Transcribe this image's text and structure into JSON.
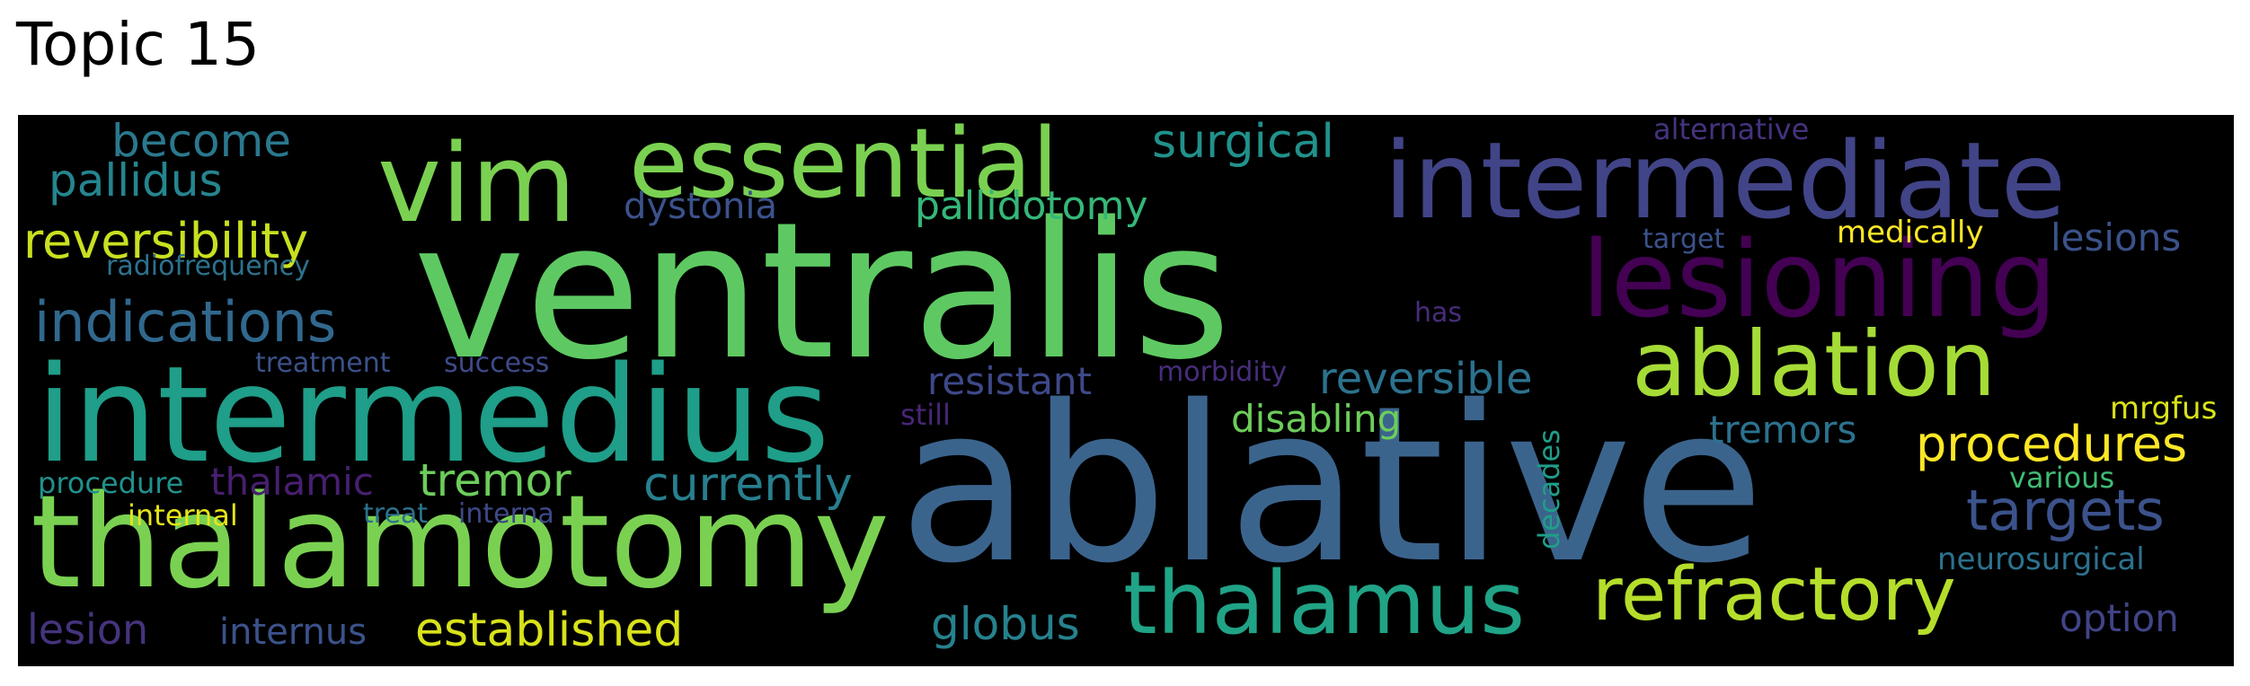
{
  "title": "Topic 15",
  "cloud": {
    "background": "#000000",
    "words": [
      {
        "text": "ventralis",
        "color": "#5ec962"
      },
      {
        "text": "ablative",
        "color": "#3b648d"
      },
      {
        "text": "intermedius",
        "color": "#1f9e89"
      },
      {
        "text": "thalamotomy",
        "color": "#7ad151"
      },
      {
        "text": "intermediate",
        "color": "#414487"
      },
      {
        "text": "lesioning",
        "color": "#440154"
      },
      {
        "text": "vim",
        "color": "#7ad151"
      },
      {
        "text": "essential",
        "color": "#7ad151"
      },
      {
        "text": "ablation",
        "color": "#a5db36"
      },
      {
        "text": "thalamus",
        "color": "#20a386"
      },
      {
        "text": "refractory",
        "color": "#b5de2b"
      },
      {
        "text": "indications",
        "color": "#31688e"
      },
      {
        "text": "reversibility",
        "color": "#c8e020"
      },
      {
        "text": "become",
        "color": "#2a788e"
      },
      {
        "text": "pallidus",
        "color": "#25858e"
      },
      {
        "text": "surgical",
        "color": "#21918c"
      },
      {
        "text": "dystonia",
        "color": "#3b528b"
      },
      {
        "text": "pallidotomy",
        "color": "#35b779"
      },
      {
        "text": "radiofrequency",
        "color": "#2c728e"
      },
      {
        "text": "treatment",
        "color": "#3b528b"
      },
      {
        "text": "success",
        "color": "#3e4a89"
      },
      {
        "text": "resistant",
        "color": "#3e4989"
      },
      {
        "text": "morbidity",
        "color": "#472d7b"
      },
      {
        "text": "reversible",
        "color": "#2c728e"
      },
      {
        "text": "disabling",
        "color": "#6ccd5a"
      },
      {
        "text": "still",
        "color": "#482677"
      },
      {
        "text": "has",
        "color": "#472c7a"
      },
      {
        "text": "tremor",
        "color": "#6ccd5a"
      },
      {
        "text": "currently",
        "color": "#277f8e"
      },
      {
        "text": "procedure",
        "color": "#21918c"
      },
      {
        "text": "thalamic",
        "color": "#481f70"
      },
      {
        "text": "internal",
        "color": "#e5e419"
      },
      {
        "text": "treat",
        "color": "#2c728e"
      },
      {
        "text": "interna",
        "color": "#3e4989"
      },
      {
        "text": "lesion",
        "color": "#46337e"
      },
      {
        "text": "internus",
        "color": "#3b528b"
      },
      {
        "text": "established",
        "color": "#d8e219"
      },
      {
        "text": "globus",
        "color": "#26828e"
      },
      {
        "text": "decades",
        "color": "#1f9e89"
      },
      {
        "text": "alternative",
        "color": "#46327e"
      },
      {
        "text": "target",
        "color": "#3b528b"
      },
      {
        "text": "medically",
        "color": "#fde725"
      },
      {
        "text": "lesions",
        "color": "#3b528b"
      },
      {
        "text": "tremors",
        "color": "#2c728e"
      },
      {
        "text": "procedures",
        "color": "#fde725"
      },
      {
        "text": "mrgfus",
        "color": "#d8e219"
      },
      {
        "text": "targets",
        "color": "#3b528b"
      },
      {
        "text": "various",
        "color": "#3fbc73"
      },
      {
        "text": "neurosurgical",
        "color": "#2c728e"
      },
      {
        "text": "option",
        "color": "#414487"
      }
    ]
  }
}
